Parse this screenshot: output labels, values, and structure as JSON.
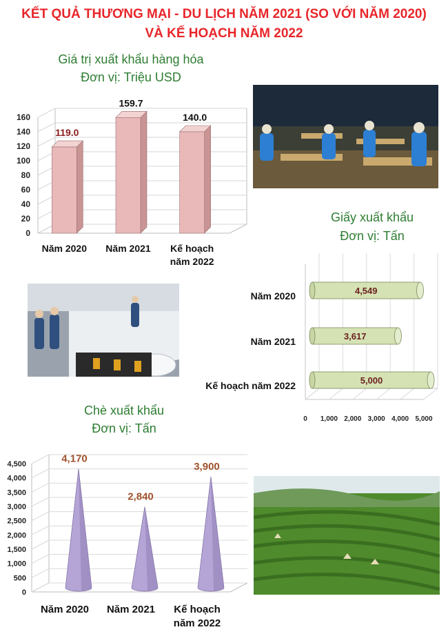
{
  "header": {
    "line1": "KẾT QUẢ THƯƠNG MẠI - DU LỊCH NĂM 2021 (SO VỚI NĂM 2020)",
    "line2": "VÀ KẾ HOẠCH NĂM 2022"
  },
  "colors": {
    "title": "#e8262a",
    "chart_title": "#2e7d32",
    "bar_fill": "#e9b8b8",
    "cylinder_fill": "#d4e2b4",
    "cone_fill": "#b5a5d6",
    "cone_label": "#a0522d"
  },
  "photos": [
    {
      "name": "furniture-factory-photo",
      "icon": "factory-workers-icon"
    },
    {
      "name": "paper-mill-photo",
      "icon": "paper-rolls-icon"
    },
    {
      "name": "tea-plantation-photo",
      "icon": "tea-field-icon"
    }
  ],
  "chart_data": [
    {
      "type": "bar",
      "title": "Giá trị xuất khẩu hàng hóa",
      "subtitle": "Đơn vị: Triệu USD",
      "categories": [
        "Năm 2020",
        "Năm 2021",
        "Kế hoạch năm 2022"
      ],
      "category_lines": [
        [
          "Năm 2020"
        ],
        [
          "Năm 2021"
        ],
        [
          "Kế hoạch",
          "năm 2022"
        ]
      ],
      "values": [
        119.0,
        159.7,
        140.0
      ],
      "value_labels": [
        "119.0",
        "159.7",
        "140.0"
      ],
      "value_label_colors": [
        "#8b1a1a",
        "#111111",
        "#111111"
      ],
      "yticks": [
        "0",
        "20",
        "40",
        "60",
        "80",
        "100",
        "120",
        "140",
        "160"
      ],
      "ylim": [
        0,
        160
      ],
      "grid": true
    },
    {
      "type": "bar",
      "orientation": "horizontal",
      "title": "Giấy xuất khẩu",
      "subtitle": "Đơn vị: Tấn",
      "categories": [
        "Năm 2020",
        "Năm 2021",
        "Kế hoạch năm 2022"
      ],
      "values": [
        4549,
        3617,
        5000
      ],
      "value_labels": [
        "4,549",
        "3,617",
        "5,000"
      ],
      "xticks": [
        "0",
        "1,000",
        "2,000",
        "3,000",
        "4,000",
        "5,000"
      ],
      "xlim": [
        0,
        5000
      ],
      "grid": true
    },
    {
      "type": "bar",
      "shape": "cone",
      "title": "Chè xuất khẩu",
      "subtitle": "Đơn vị: Tấn",
      "categories": [
        "Năm 2020",
        "Năm 2021",
        "Kế hoạch năm 2022"
      ],
      "category_lines": [
        [
          "Năm 2020"
        ],
        [
          "Năm 2021"
        ],
        [
          "Kế hoạch",
          "năm 2022"
        ]
      ],
      "values": [
        4170,
        2840,
        3900
      ],
      "value_labels": [
        "4,170",
        "2,840",
        "3,900"
      ],
      "yticks": [
        "0",
        "500",
        "1,000",
        "1,500",
        "2,000",
        "2,500",
        "3,000",
        "3,500",
        "4,000",
        "4,500"
      ],
      "ylim": [
        0,
        4500
      ],
      "grid": true
    }
  ]
}
